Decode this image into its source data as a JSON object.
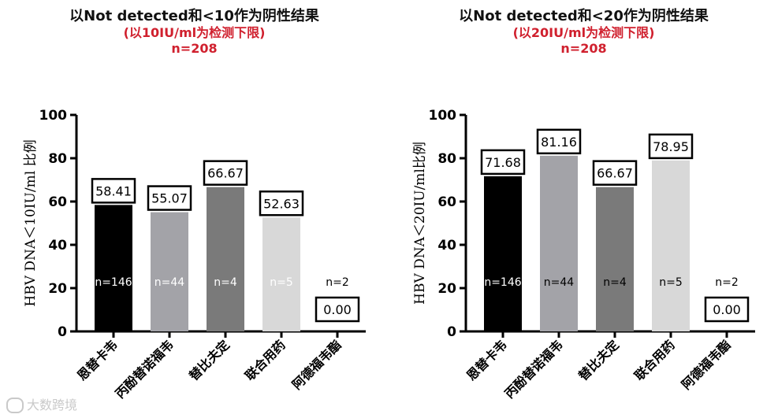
{
  "chart_data": [
    {
      "type": "bar",
      "title": "以Not detected和<10作为阴性结果",
      "subtitle": "(以10IU/ml为检测下限)",
      "subtitle2": "n=208",
      "ylabel": "HBV DNA＜10IU/ml 比例",
      "ylim": [
        0,
        100
      ],
      "yticks": [
        0,
        20,
        40,
        60,
        80,
        100
      ],
      "categories": [
        "恩替卡韦",
        "丙酚替诺福韦",
        "替比夫定",
        "联合用药",
        "阿德福韦酯"
      ],
      "values": [
        58.41,
        55.07,
        66.67,
        52.63,
        0.0
      ],
      "value_labels": [
        "58.41",
        "55.07",
        "66.67",
        "52.63",
        "0.00"
      ],
      "n_labels": [
        "n=146",
        "n=44",
        "n=4",
        "n=5",
        "n=2"
      ],
      "colors": [
        "#000000",
        "#a3a3a8",
        "#7a7a7a",
        "#d8d8d8",
        "#ffffff"
      ],
      "n_label_colors": [
        "#ffffff",
        "#ffffff",
        "#ffffff",
        "#ffffff",
        "#000000"
      ]
    },
    {
      "type": "bar",
      "title": "以Not detected和<20作为阴性结果",
      "subtitle": "(以20IU/ml为检测下限)",
      "subtitle2": "n=208",
      "ylabel": "HBV DNA＜20IU/ml比例",
      "ylim": [
        0,
        100
      ],
      "yticks": [
        0,
        20,
        40,
        60,
        80,
        100
      ],
      "categories": [
        "恩替卡韦",
        "丙酚替诺福韦",
        "替比夫定",
        "联合用药",
        "阿德福韦酯"
      ],
      "values": [
        71.68,
        81.16,
        66.67,
        78.95,
        0.0
      ],
      "value_labels": [
        "71.68",
        "81.16",
        "66.67",
        "78.95",
        "0.00"
      ],
      "n_labels": [
        "n=146",
        "n=44",
        "n=4",
        "n=5",
        "n=2"
      ],
      "colors": [
        "#000000",
        "#a3a3a8",
        "#7a7a7a",
        "#d8d8d8",
        "#ffffff"
      ],
      "n_label_colors": [
        "#ffffff",
        "#000000",
        "#000000",
        "#000000",
        "#000000"
      ]
    }
  ],
  "watermark": {
    "icon": "logo-icon",
    "text": "大数跨境"
  }
}
